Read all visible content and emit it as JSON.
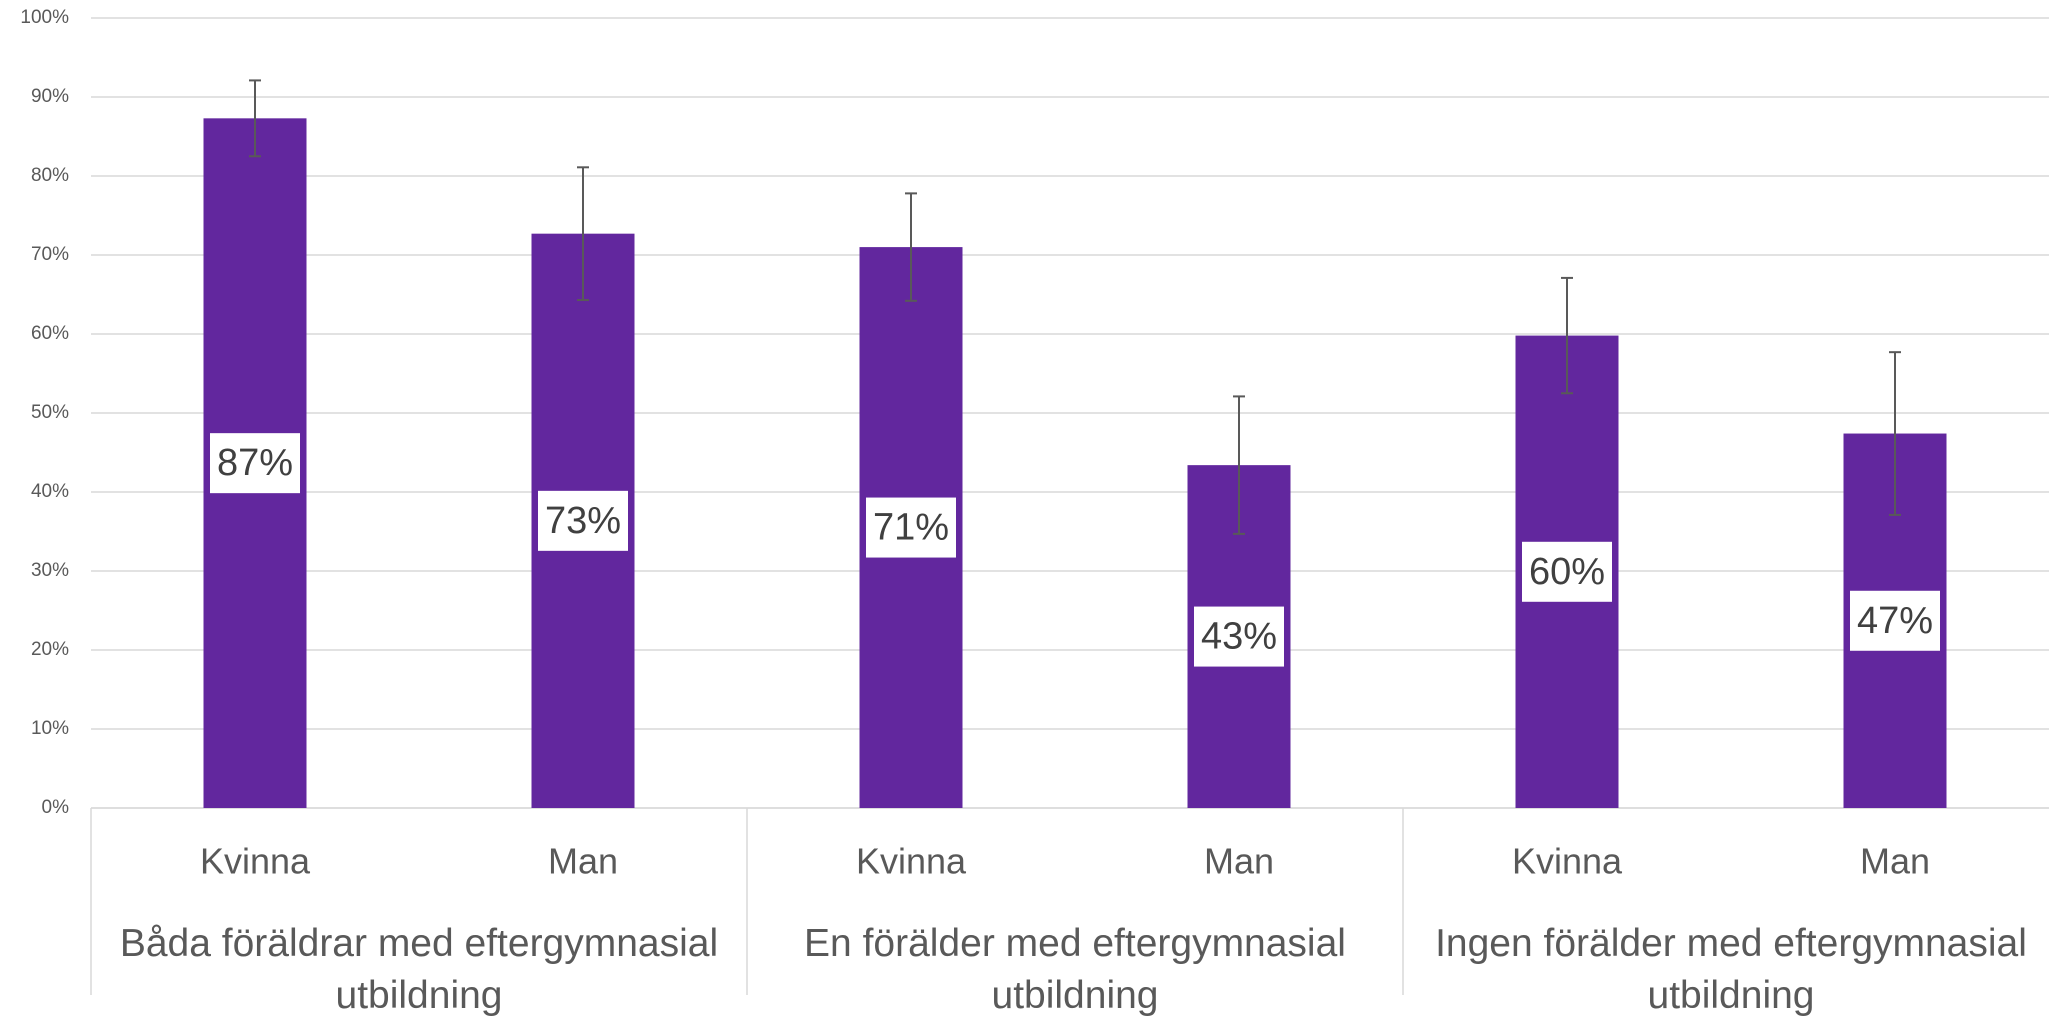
{
  "chart_data": {
    "type": "bar",
    "categories": [
      "Kvinna",
      "Man",
      "Kvinna",
      "Man",
      "Kvinna",
      "Man"
    ],
    "groups": [
      "Båda föräldrar med eftergymnasial utbildning",
      "En förälder med eftergymnasial utbildning",
      "Ingen förälder med eftergymnasial utbildning"
    ],
    "values": [
      87.3,
      72.7,
      71,
      43.4,
      59.8,
      47.4
    ],
    "value_labels": [
      "87%",
      "73%",
      "71%",
      "43%",
      "60%",
      "47%"
    ],
    "errors": [
      4.8,
      8.4,
      6.8,
      8.7,
      7.3,
      10.3
    ],
    "color": "#62279e",
    "ylim": [
      0,
      100
    ],
    "yticks": [
      {
        "value": 0,
        "label": "0%"
      },
      {
        "value": 10,
        "label": "10%"
      },
      {
        "value": 20,
        "label": "20%"
      },
      {
        "value": 30,
        "label": "30%"
      },
      {
        "value": 40,
        "label": "40%"
      },
      {
        "value": 50,
        "label": "50%"
      },
      {
        "value": 60,
        "label": "60%"
      },
      {
        "value": 70,
        "label": "70%"
      },
      {
        "value": 80,
        "label": "80%"
      },
      {
        "value": 90,
        "label": "90%"
      },
      {
        "value": 100,
        "label": "100%"
      }
    ],
    "grid": true
  }
}
